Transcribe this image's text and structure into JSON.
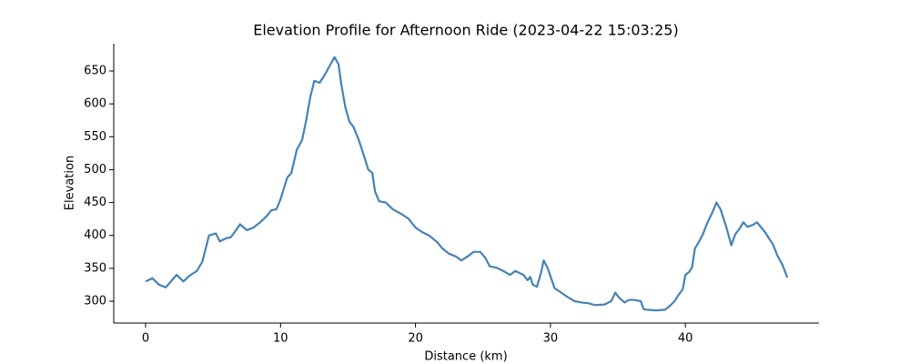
{
  "chart_data": {
    "type": "line",
    "title": "Elevation Profile for Afternoon Ride (2023-04-22 15:03:25)",
    "x_label": "Distance (km)",
    "y_label": "Elevation",
    "xlim": [
      -2.36,
      49.9
    ],
    "ylim": [
      266.8,
      691.5
    ],
    "xticks": [
      0,
      10,
      20,
      30,
      40
    ],
    "yticks": [
      300,
      350,
      400,
      450,
      500,
      550,
      600,
      650
    ],
    "series": [
      {
        "color": "#4682b4",
        "x": [
          0,
          0.5,
          1,
          1.5,
          2,
          2.3,
          2.8,
          3.2,
          3.8,
          4.2,
          4.7,
          5.2,
          5.5,
          6,
          6.3,
          6.6,
          7,
          7.5,
          8,
          8.5,
          9,
          9.3,
          9.7,
          10,
          10.5,
          10.8,
          11.2,
          11.6,
          11.9,
          12.2,
          12.5,
          12.9,
          13.3,
          13.7,
          14,
          14.3,
          14.5,
          14.8,
          15.1,
          15.4,
          15.8,
          16.2,
          16.5,
          16.8,
          17,
          17.3,
          17.8,
          18.3,
          19,
          19.5,
          20,
          20.5,
          21,
          21.6,
          22,
          22.5,
          23,
          23.4,
          24,
          24.3,
          24.8,
          25.2,
          25.5,
          26,
          26.5,
          27,
          27.4,
          28,
          28.3,
          28.5,
          28.7,
          29,
          29.3,
          29.5,
          29.8,
          30.3,
          30.8,
          31.3,
          31.8,
          32.3,
          32.8,
          33.3,
          34,
          34.5,
          34.8,
          35.1,
          35.5,
          35.8,
          36.2,
          36.7,
          36.9,
          37.2,
          37.8,
          38.5,
          38.8,
          39.2,
          39.5,
          39.8,
          40,
          40.3,
          40.5,
          40.7,
          41,
          41.3,
          41.6,
          42,
          42.3,
          42.6,
          43,
          43.4,
          43.7,
          44,
          44.3,
          44.6,
          45,
          45.3,
          45.9,
          46.5,
          46.8,
          47.2,
          47.55
        ],
        "values": [
          330,
          335,
          325,
          321,
          333,
          340,
          330,
          338,
          346,
          360,
          400,
          403,
          391,
          396,
          397,
          405,
          417,
          408,
          412,
          420,
          430,
          438,
          440,
          455,
          488,
          495,
          530,
          545,
          575,
          610,
          635,
          632,
          645,
          660,
          671,
          660,
          630,
          595,
          573,
          565,
          545,
          520,
          500,
          495,
          467,
          452,
          450,
          440,
          432,
          425,
          412,
          405,
          400,
          390,
          380,
          372,
          368,
          362,
          370,
          375,
          375,
          365,
          353,
          351,
          346,
          340,
          346,
          340,
          332,
          337,
          325,
          322,
          343,
          362,
          350,
          320,
          313,
          306,
          300,
          298,
          297,
          294,
          295,
          300,
          313,
          305,
          298,
          302,
          302,
          300,
          288,
          287,
          286,
          287,
          292,
          300,
          310,
          318,
          340,
          345,
          352,
          380,
          390,
          402,
          418,
          435,
          450,
          440,
          415,
          385,
          402,
          410,
          420,
          413,
          416,
          420,
          405,
          386,
          370,
          355,
          336
        ]
      }
    ]
  }
}
